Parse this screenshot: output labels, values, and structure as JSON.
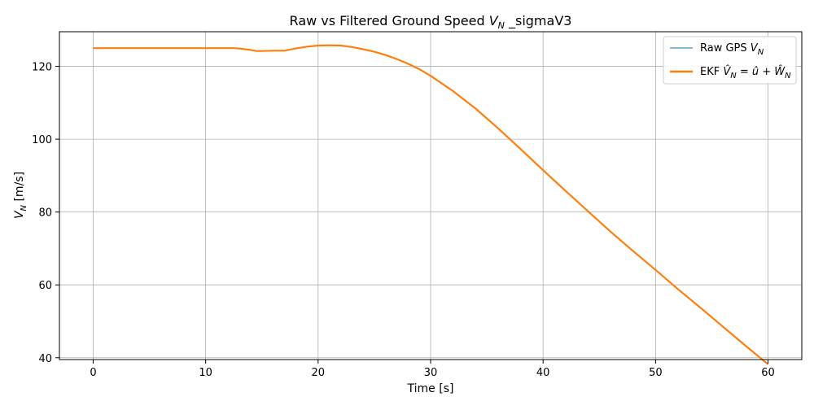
{
  "chart_data": {
    "type": "line",
    "title": "Raw vs Filtered Ground Speed V_N _sigmaV3",
    "title_parts": {
      "pre": "Raw vs Filtered Ground Speed ",
      "var": "V",
      "sub": "N",
      "post": " _sigmaV3"
    },
    "xlabel": "Time [s]",
    "ylabel": "V_N [m/s]",
    "ylabel_parts": {
      "var": "V",
      "sub": "N",
      "post": " [m/s]"
    },
    "xlim": [
      -3,
      63
    ],
    "ylim": [
      39.5,
      129.5
    ],
    "x_ticks": [
      0,
      10,
      20,
      30,
      40,
      50,
      60
    ],
    "y_ticks": [
      40,
      60,
      80,
      100,
      120
    ],
    "grid": true,
    "legend_position": "top-right",
    "legend_entries": [
      {
        "label": "Raw GPS V_N",
        "parts": {
          "pre": "Raw GPS ",
          "var": "V",
          "sub": "N",
          "post": ""
        }
      },
      {
        "label": "EKF V̂_N = û + Ŵ_N",
        "parts": {
          "pre": "EKF ",
          "expr": "V̂",
          "sub": "N",
          "mid": " = û + Ŵ",
          "sub2": "N"
        }
      }
    ],
    "series": [
      {
        "name": "Raw GPS V_N",
        "color": "#5fa2c8",
        "x": [
          0,
          5,
          10,
          12,
          12.5,
          13,
          14,
          14.5,
          15,
          16,
          17,
          18,
          19,
          20,
          21,
          22,
          23,
          24,
          25,
          26,
          27,
          28,
          29,
          30,
          32,
          34,
          36,
          38,
          40,
          42,
          44,
          46,
          48,
          50,
          52,
          54,
          56,
          58,
          60
        ],
        "y": [
          125,
          125,
          125,
          125,
          125,
          124.9,
          124.5,
          124.2,
          124.2,
          124.3,
          124.3,
          124.9,
          125.4,
          125.7,
          125.8,
          125.7,
          125.3,
          124.7,
          124,
          123.1,
          122,
          120.7,
          119.2,
          117.4,
          113.2,
          108.4,
          103,
          97.3,
          91.5,
          85.8,
          80.2,
          74.6,
          69.3,
          64.1,
          58.8,
          53.7,
          48.5,
          43.3,
          38.2
        ]
      },
      {
        "name": "EKF V̂_N = û + Ŵ_N",
        "color": "#ff7f0e",
        "x": [
          0,
          5,
          10,
          12,
          12.5,
          13,
          14,
          14.5,
          15,
          16,
          17,
          18,
          19,
          20,
          21,
          22,
          23,
          24,
          25,
          26,
          27,
          28,
          29,
          30,
          32,
          34,
          36,
          38,
          40,
          42,
          44,
          46,
          48,
          50,
          52,
          54,
          56,
          58,
          60
        ],
        "y": [
          125,
          125,
          125,
          125,
          125,
          124.9,
          124.5,
          124.2,
          124.2,
          124.3,
          124.3,
          124.9,
          125.4,
          125.7,
          125.8,
          125.7,
          125.3,
          124.7,
          124,
          123.1,
          122,
          120.7,
          119.2,
          117.4,
          113.2,
          108.4,
          103,
          97.3,
          91.5,
          85.8,
          80.2,
          74.6,
          69.3,
          64.1,
          58.8,
          53.7,
          48.5,
          43.3,
          38.2
        ]
      }
    ]
  }
}
